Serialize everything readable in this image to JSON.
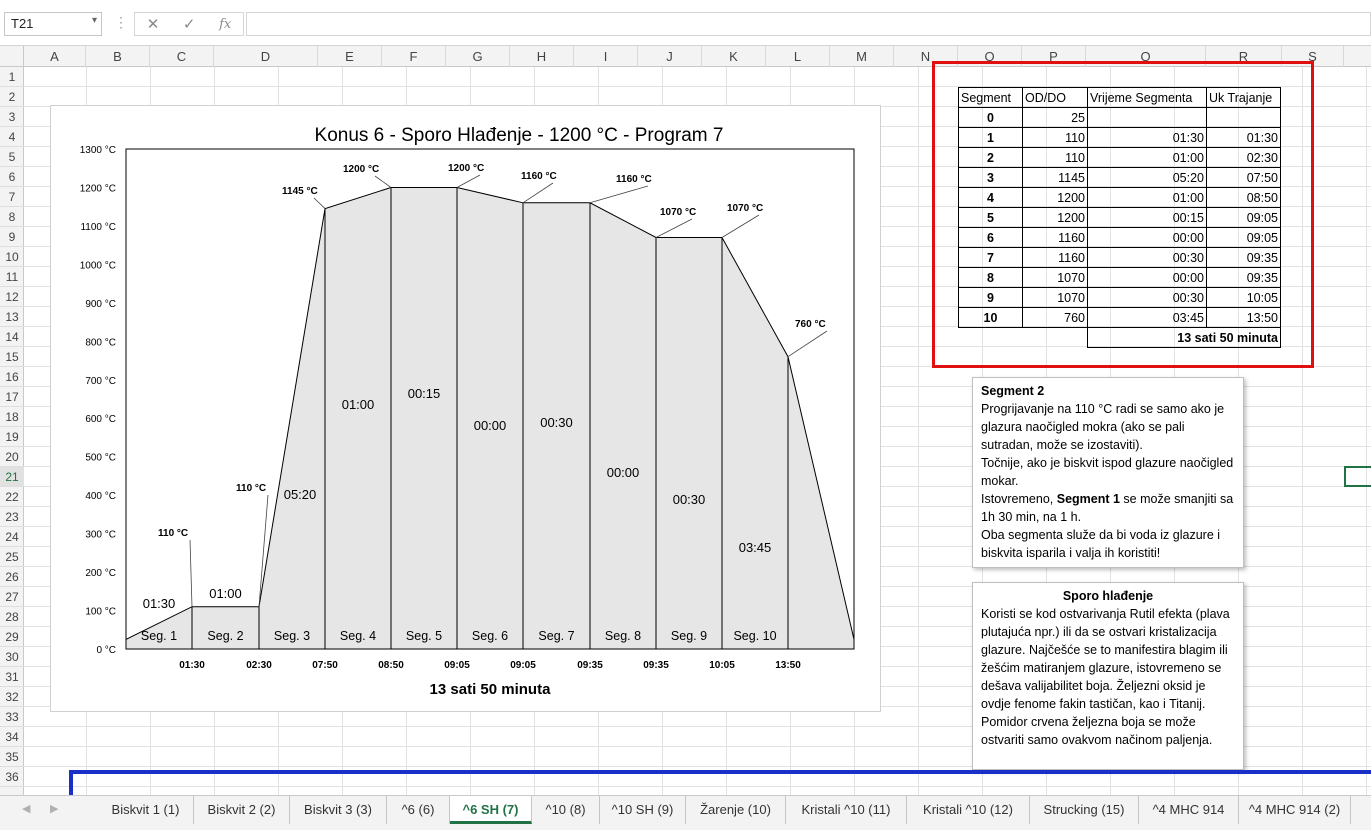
{
  "formula_bar": {
    "name_box": "T21",
    "fx": "fx"
  },
  "columns": [
    "A",
    "B",
    "C",
    "D",
    "E",
    "F",
    "G",
    "H",
    "I",
    "J",
    "K",
    "L",
    "M",
    "N",
    "O",
    "P",
    "Q",
    "R",
    "S"
  ],
  "rows": [
    "1",
    "2",
    "3",
    "4",
    "5",
    "6",
    "7",
    "8",
    "9",
    "10",
    "11",
    "12",
    "13",
    "14",
    "15",
    "16",
    "17",
    "18",
    "19",
    "20",
    "21",
    "22",
    "23",
    "24",
    "25",
    "26",
    "27",
    "28",
    "29",
    "30",
    "31",
    "32",
    "33",
    "34",
    "35",
    "36"
  ],
  "active_row": "21",
  "chart_data": {
    "type": "area",
    "title": "Konus 6 - Sporo Hlađenje - 1200 °C - Program 7",
    "subtitle_bottom": "13 sati 50 minuta",
    "ylim": [
      0,
      1300
    ],
    "y_ticks": [
      "0 °C",
      "100 °C",
      "200 °C",
      "300 °C",
      "400 °C",
      "500 °C",
      "600 °C",
      "700 °C",
      "800 °C",
      "900 °C",
      "1000 °C",
      "1100 °C",
      "1200 °C",
      "1300 °C"
    ],
    "x_tick_labels": [
      "01:30",
      "02:30",
      "07:50",
      "08:50",
      "09:05",
      "09:05",
      "09:35",
      "09:35",
      "10:05",
      "13:50"
    ],
    "points": [
      25,
      110,
      110,
      1145,
      1200,
      1200,
      1160,
      1160,
      1070,
      1070,
      760,
      25
    ],
    "point_labels": [
      "110 °C",
      "110 °C",
      "1145 °C",
      "1200 °C",
      "1200 °C",
      "1160 °C",
      "1160 °C",
      "1070 °C",
      "1070 °C",
      "760 °C"
    ],
    "segments": [
      "Seg. 1",
      "Seg. 2",
      "Seg. 3",
      "Seg. 4",
      "Seg. 5",
      "Seg. 6",
      "Seg. 7",
      "Seg. 8",
      "Seg. 9",
      "Seg. 10"
    ],
    "durations": [
      "01:30",
      "01:00",
      "05:20",
      "01:00",
      "00:15",
      "00:00",
      "00:30",
      "00:00",
      "00:30",
      "03:45"
    ],
    "grid": false
  },
  "table": {
    "headers": [
      "Segment",
      "OD/DO",
      "Vrijeme Segmenta",
      "Uk Trajanje"
    ],
    "rows": [
      [
        "0",
        "25",
        "",
        ""
      ],
      [
        "1",
        "110",
        "01:30",
        "01:30"
      ],
      [
        "2",
        "110",
        "01:00",
        "02:30"
      ],
      [
        "3",
        "1145",
        "05:20",
        "07:50"
      ],
      [
        "4",
        "1200",
        "01:00",
        "08:50"
      ],
      [
        "5",
        "1200",
        "00:15",
        "09:05"
      ],
      [
        "6",
        "1160",
        "00:00",
        "09:05"
      ],
      [
        "7",
        "1160",
        "00:30",
        "09:35"
      ],
      [
        "8",
        "1070",
        "00:00",
        "09:35"
      ],
      [
        "9",
        "1070",
        "00:30",
        "10:05"
      ],
      [
        "10",
        "760",
        "03:45",
        "13:50"
      ]
    ],
    "total": "13 sati 50 minuta"
  },
  "note1": {
    "title": "Segment 2",
    "p1": "Progrijavanje na 110 °C radi se samo ako je glazura naočigled mokra (ako se pali sutradan, može se izostaviti).",
    "p2": "Točnije, ako je biskvit ispod glazure naočigled mokar.",
    "p3a": "Istovremeno, ",
    "p3b": "Segment 1",
    "p3c": " se može smanjiti sa 1h 30 min, na 1 h.",
    "p4": "Oba segmenta služe da bi voda iz glazure i biskvita isparila i valja ih koristiti!"
  },
  "note2": {
    "title": "Sporo hlađenje",
    "body": "Koristi se kod ostvarivanja Rutil efekta (plava plutajuća npr.) ili da se ostvari kristalizacija glazure. Najčešće se to manifestira blagim ili žešćim matiranjem glazure, istovremeno se dešava valijabilitet boja. Željezni oksid je ovdje fenome fakin tastičan, kao i Titanij. Pomidor crvena željezna boja se može ostvariti samo ovakvom načinom paljenja."
  },
  "tabs": [
    "Biskvit 1 (1)",
    "Biskvit 2 (2)",
    "Biskvit 3 (3)",
    "^6 (6)",
    "^6 SH (7)",
    "^10 (8)",
    "^10 SH (9)",
    "Žarenje (10)",
    "Kristali ^10 (11)",
    "Kristali ^10 (12)",
    "Strucking (15)",
    "^4 MHC 914",
    "^4 MHC 914 (2)"
  ],
  "active_tab": 4,
  "colors": {
    "accent": "#217346",
    "red_box": "#e01010",
    "blue_line": "#1a2fc8",
    "chart_fill": "#e6e6e6"
  }
}
